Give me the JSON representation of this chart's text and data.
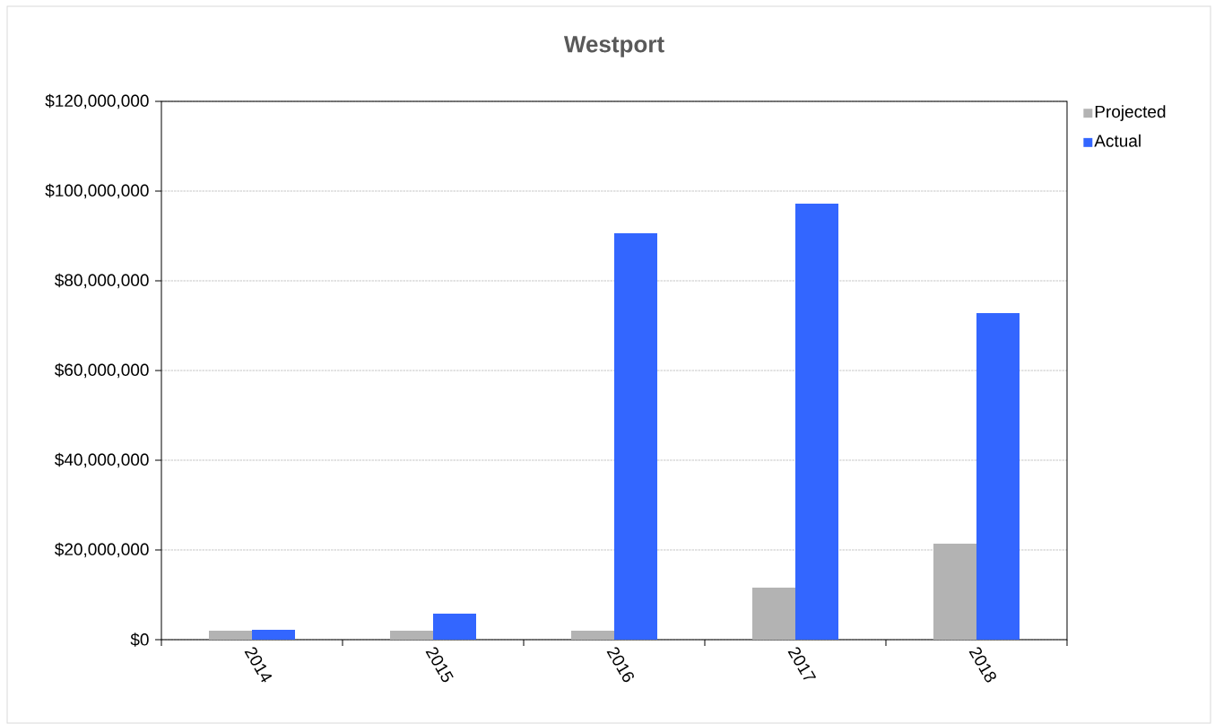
{
  "chart_data": {
    "type": "bar",
    "title": "Westport",
    "categories": [
      "2014",
      "2015",
      "2016",
      "2017",
      "2018"
    ],
    "series": [
      {
        "name": "Projected",
        "color": "#b3b3b3",
        "values": [
          2000000,
          2000000,
          2000000,
          11600000,
          21400000
        ]
      },
      {
        "name": "Actual",
        "color": "#3366ff",
        "values": [
          2200000,
          5800000,
          90600000,
          97200000,
          72800000
        ]
      }
    ],
    "ylim": [
      0,
      120000000
    ],
    "yticks": [
      {
        "value": 0,
        "label": "$0"
      },
      {
        "value": 20000000,
        "label": "$20,000,000"
      },
      {
        "value": 40000000,
        "label": "$40,000,000"
      },
      {
        "value": 60000000,
        "label": "$60,000,000"
      },
      {
        "value": 80000000,
        "label": "$80,000,000"
      },
      {
        "value": 100000000,
        "label": "$100,000,000"
      },
      {
        "value": 120000000,
        "label": "$120,000,000"
      }
    ],
    "grid": "y",
    "legend": "right"
  }
}
